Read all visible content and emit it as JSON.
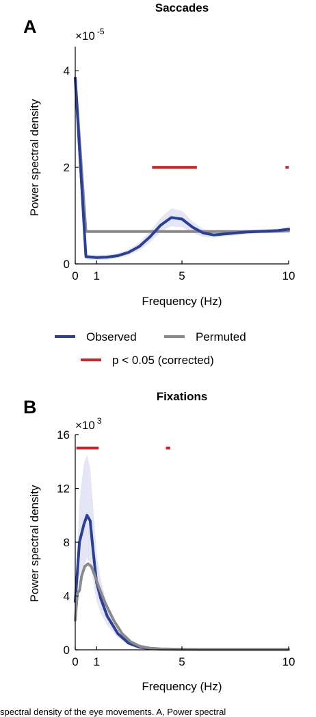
{
  "chart_data": [
    {
      "type": "line",
      "panel_label": "A",
      "title": "Saccades",
      "xlabel": "Frequency (Hz)",
      "ylabel": "Power spectral density",
      "y_multiplier": "×10",
      "y_multiplier_exponent": "-5",
      "xlim": [
        0,
        10
      ],
      "ylim": [
        0,
        4.5
      ],
      "xticks": [
        0,
        1,
        5,
        10
      ],
      "xtick_labels": [
        "0",
        "1",
        "5",
        "10"
      ],
      "yticks": [
        0,
        2,
        4
      ],
      "ytick_labels": [
        "0",
        "2",
        "4"
      ],
      "series": [
        {
          "name": "Observed",
          "color": "#2a3f9a",
          "x": [
            0,
            0.5,
            1,
            1.5,
            2,
            2.5,
            3,
            3.5,
            4,
            4.5,
            5,
            5.5,
            6,
            6.5,
            7,
            7.5,
            8,
            8.5,
            9,
            9.5,
            10
          ],
          "y": [
            3.85,
            0.15,
            0.13,
            0.14,
            0.17,
            0.24,
            0.36,
            0.56,
            0.8,
            0.96,
            0.93,
            0.76,
            0.64,
            0.6,
            0.62,
            0.64,
            0.66,
            0.67,
            0.68,
            0.69,
            0.72
          ],
          "band_upper": [
            3.9,
            0.2,
            0.18,
            0.19,
            0.22,
            0.3,
            0.44,
            0.68,
            0.95,
            1.15,
            1.1,
            0.88,
            0.72,
            0.66,
            0.67,
            0.69,
            0.7,
            0.71,
            0.72,
            0.73,
            0.76
          ],
          "band_lower": [
            3.8,
            0.1,
            0.08,
            0.09,
            0.12,
            0.18,
            0.28,
            0.44,
            0.66,
            0.78,
            0.76,
            0.64,
            0.56,
            0.54,
            0.57,
            0.59,
            0.62,
            0.63,
            0.64,
            0.65,
            0.68
          ]
        },
        {
          "name": "Permuted",
          "color": "#8a8a8a",
          "x": [
            0,
            0.5,
            1,
            2,
            3,
            4,
            5,
            6,
            7,
            8,
            9,
            10
          ],
          "y": [
            3.85,
            0.67,
            0.67,
            0.67,
            0.67,
            0.67,
            0.67,
            0.67,
            0.67,
            0.67,
            0.67,
            0.68
          ]
        }
      ],
      "significance": {
        "name": "p < 0.05 (corrected)",
        "color": "#d42027",
        "y": 2.0,
        "ranges": [
          [
            3.6,
            5.7
          ],
          [
            9.85,
            10
          ]
        ]
      }
    },
    {
      "type": "line",
      "panel_label": "B",
      "title": "Fixations",
      "xlabel": "Frequency (Hz)",
      "ylabel": "Power spectral density",
      "y_multiplier": "×10",
      "y_multiplier_exponent": "3",
      "xlim": [
        0,
        10
      ],
      "ylim": [
        0,
        16
      ],
      "xticks": [
        0,
        1,
        5,
        10
      ],
      "xtick_labels": [
        "0",
        "1",
        "5",
        "10"
      ],
      "yticks": [
        0,
        4,
        8,
        12,
        16
      ],
      "ytick_labels": [
        "0",
        "4",
        "8",
        "12",
        "16"
      ],
      "series": [
        {
          "name": "Observed",
          "color": "#2a3f9a",
          "x": [
            0,
            0.2,
            0.4,
            0.55,
            0.7,
            0.85,
            1,
            1.2,
            1.5,
            2,
            2.5,
            3,
            3.5,
            4,
            5,
            6,
            7,
            8,
            9,
            10
          ],
          "y": [
            3.6,
            8.0,
            9.3,
            10.0,
            9.6,
            7.2,
            5.0,
            3.8,
            2.5,
            1.2,
            0.5,
            0.2,
            0.1,
            0.05,
            0.03,
            0.02,
            0.02,
            0.02,
            0.02,
            0.02
          ],
          "band_upper": [
            4.5,
            11.0,
            13.8,
            14.5,
            13.5,
            10.5,
            7.2,
            5.2,
            3.3,
            1.6,
            0.7,
            0.3,
            0.15,
            0.08,
            0.05,
            0.04,
            0.04,
            0.04,
            0.04,
            0.04
          ],
          "band_lower": [
            2.8,
            5.5,
            6.2,
            6.8,
            6.5,
            5.0,
            3.6,
            2.7,
            1.8,
            0.9,
            0.35,
            0.12,
            0.06,
            0.03,
            0.02,
            0.01,
            0.01,
            0.01,
            0.01,
            0.01
          ]
        },
        {
          "name": "Permuted",
          "color": "#8a8a8a",
          "x": [
            0,
            0.1,
            0.2,
            0.3,
            0.45,
            0.6,
            0.75,
            0.9,
            1.1,
            1.4,
            1.8,
            2.2,
            2.6,
            3,
            3.5,
            4,
            5,
            6,
            7,
            8,
            9,
            10
          ],
          "y": [
            2.2,
            4.2,
            4.4,
            5.5,
            6.2,
            6.4,
            6.2,
            5.6,
            4.7,
            3.5,
            2.2,
            1.2,
            0.6,
            0.28,
            0.12,
            0.07,
            0.04,
            0.03,
            0.03,
            0.03,
            0.03,
            0.03
          ]
        }
      ],
      "significance": {
        "name": "p < 0.05 (corrected)",
        "color": "#d42027",
        "y": 15.0,
        "ranges": [
          [
            0.05,
            1.1
          ],
          [
            4.25,
            4.45
          ]
        ]
      }
    }
  ],
  "legend": {
    "items": [
      {
        "label": "Observed",
        "color": "#2a3f9a"
      },
      {
        "label": "Permuted",
        "color": "#8a8a8a"
      },
      {
        "label": "p < 0.05 (corrected)",
        "color": "#d42027"
      }
    ]
  },
  "colors": {
    "band": "#e4e6f5",
    "axis": "#000000"
  },
  "caption": {
    "partial_text": "spectral density of the eye movements.  A, Power spectral"
  }
}
